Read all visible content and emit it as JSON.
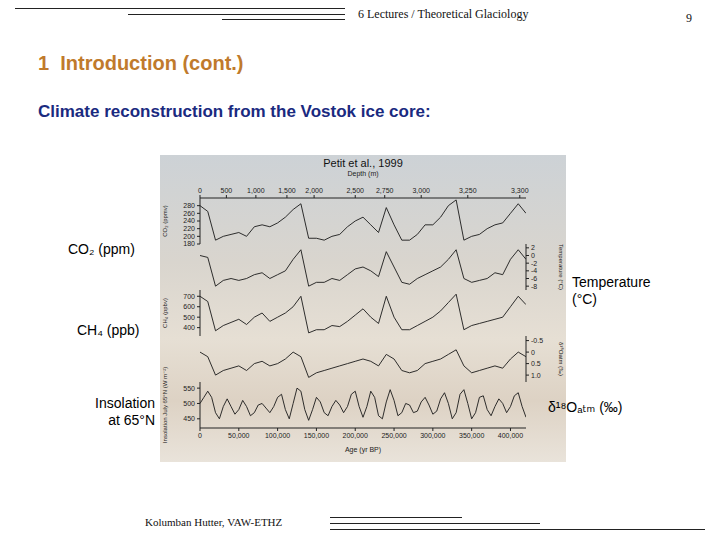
{
  "header": {
    "course": "6 Lectures / Theoretical Glaciology",
    "page": "9"
  },
  "title": "1  Introduction (cont.)",
  "subtitle": "Climate reconstruction from the Vostok ice core:",
  "footer": "Kolumban Hutter, VAW-ETHZ",
  "figure": {
    "credit": "Petit et al., 1999",
    "side_labels": [
      [
        "CO₂ (ppm)"
      ],
      [
        "Temperature",
        "(°C)"
      ],
      [
        "CH₄ (ppb)"
      ],
      [
        "δ¹⁸Oₐₜₘ (‰)"
      ],
      [
        "Insolation",
        "at 65°N"
      ]
    ],
    "top_axis": {
      "label": "Depth (m)",
      "ticks": [
        {
          "value": 0,
          "label": "0"
        },
        {
          "value": 34000,
          "label": "500"
        },
        {
          "value": 72000,
          "label": "1,000"
        },
        {
          "value": 112000,
          "label": "1,500"
        },
        {
          "value": 147000,
          "label": "2,000"
        },
        {
          "value": 200000,
          "label": "2,500"
        },
        {
          "value": 238000,
          "label": "2,750"
        },
        {
          "value": 285000,
          "label": "3,000"
        },
        {
          "value": 345000,
          "label": "3,250"
        },
        {
          "value": 412000,
          "label": "3,300"
        }
      ]
    }
  },
  "chart_data": [
    {
      "type": "line",
      "ylabel": "CO₂ (ppmv)",
      "color": "#1a1a1a",
      "xlim": [
        0,
        420000
      ],
      "x": [
        0,
        10000,
        20000,
        30000,
        40000,
        50000,
        60000,
        70000,
        80000,
        90000,
        100000,
        110000,
        120000,
        130000,
        140000,
        150000,
        160000,
        170000,
        180000,
        190000,
        200000,
        210000,
        220000,
        230000,
        240000,
        250000,
        260000,
        270000,
        280000,
        290000,
        300000,
        310000,
        320000,
        330000,
        340000,
        350000,
        360000,
        370000,
        380000,
        390000,
        400000,
        410000,
        420000
      ],
      "values": [
        280,
        265,
        190,
        200,
        205,
        210,
        200,
        225,
        230,
        225,
        235,
        250,
        270,
        285,
        195,
        195,
        190,
        200,
        205,
        225,
        240,
        250,
        230,
        210,
        275,
        230,
        190,
        190,
        205,
        230,
        230,
        250,
        280,
        295,
        190,
        200,
        205,
        220,
        230,
        235,
        260,
        285,
        260
      ],
      "ylim": [
        180,
        300
      ],
      "yticks": [
        180,
        200,
        220,
        240,
        260,
        280
      ]
    },
    {
      "type": "line",
      "ylabel": "Temperature (°C)",
      "color": "#1a1a1a",
      "xlim": [
        0,
        420000
      ],
      "x": [
        0,
        10000,
        20000,
        30000,
        40000,
        50000,
        60000,
        70000,
        80000,
        90000,
        100000,
        110000,
        120000,
        130000,
        140000,
        150000,
        160000,
        170000,
        180000,
        190000,
        200000,
        210000,
        220000,
        230000,
        240000,
        250000,
        260000,
        270000,
        280000,
        290000,
        300000,
        310000,
        320000,
        330000,
        340000,
        350000,
        360000,
        370000,
        380000,
        390000,
        400000,
        410000,
        420000
      ],
      "values": [
        0,
        -0.5,
        -8,
        -6.5,
        -6,
        -6.5,
        -6,
        -5,
        -4.5,
        -6,
        -5,
        -4,
        -1,
        1.5,
        -8,
        -7,
        -7,
        -6,
        -6.5,
        -5,
        -3.5,
        -3,
        -4,
        -5.5,
        1,
        -3,
        -7,
        -7.5,
        -6,
        -5,
        -4,
        -3,
        -1,
        1.5,
        -6,
        -7,
        -6.5,
        -6,
        -4.5,
        -5,
        -1,
        1.5,
        -1
      ],
      "ylim": [
        -9,
        3
      ],
      "yticks": [
        -8,
        -6,
        -4,
        -2,
        0,
        2
      ]
    },
    {
      "type": "line",
      "ylabel": "CH₄ (ppbv)",
      "color": "#1a1a1a",
      "xlim": [
        0,
        420000
      ],
      "x": [
        0,
        10000,
        20000,
        30000,
        40000,
        50000,
        60000,
        70000,
        80000,
        90000,
        100000,
        110000,
        120000,
        130000,
        140000,
        150000,
        160000,
        170000,
        180000,
        190000,
        200000,
        210000,
        220000,
        230000,
        240000,
        250000,
        260000,
        270000,
        280000,
        290000,
        300000,
        310000,
        320000,
        330000,
        340000,
        350000,
        360000,
        370000,
        380000,
        390000,
        400000,
        410000,
        420000
      ],
      "values": [
        700,
        650,
        370,
        420,
        450,
        480,
        430,
        500,
        540,
        460,
        500,
        540,
        600,
        700,
        350,
        380,
        380,
        420,
        410,
        460,
        520,
        580,
        500,
        440,
        700,
        500,
        380,
        380,
        420,
        460,
        500,
        560,
        640,
        720,
        380,
        420,
        440,
        460,
        480,
        500,
        600,
        700,
        620
      ],
      "ylim": [
        320,
        760
      ],
      "yticks": [
        400,
        500,
        600,
        700
      ]
    },
    {
      "type": "line",
      "ylabel": "δ¹⁸Oatm (‰)",
      "color": "#1a1a1a",
      "xlim": [
        0,
        420000
      ],
      "x": [
        0,
        10000,
        20000,
        30000,
        40000,
        50000,
        60000,
        70000,
        80000,
        90000,
        100000,
        110000,
        120000,
        130000,
        140000,
        150000,
        160000,
        170000,
        180000,
        190000,
        200000,
        210000,
        220000,
        230000,
        240000,
        250000,
        260000,
        270000,
        280000,
        290000,
        300000,
        310000,
        320000,
        330000,
        340000,
        350000,
        360000,
        370000,
        380000,
        390000,
        400000,
        410000,
        420000
      ],
      "values": [
        0,
        0.2,
        1,
        0.8,
        0.7,
        0.6,
        0.8,
        0.5,
        0.4,
        0.6,
        0.5,
        0.3,
        0,
        0.2,
        1.1,
        0.9,
        0.8,
        0.7,
        0.6,
        0.5,
        0.4,
        0.3,
        0.4,
        0.6,
        0.1,
        0.3,
        0.8,
        0.9,
        0.8,
        0.5,
        0.4,
        0.3,
        0.1,
        -0.1,
        0.6,
        0.9,
        0.8,
        0.7,
        0.6,
        0.7,
        0.3,
        0,
        0.2
      ],
      "ylim": [
        1.3,
        -0.7
      ],
      "yticks": [
        -0.5,
        0,
        0.5,
        {
          "value": 1,
          "label": "1.0"
        }
      ]
    },
    {
      "type": "line",
      "ylabel": "Insolation July 65°N (W m⁻²)",
      "color": "#1a1a1a",
      "xlabel": "Age (yr BP)",
      "xlim": [
        0,
        420000
      ],
      "xticks": [
        0,
        {
          "value": 50000,
          "label": "50,000"
        },
        {
          "value": 100000,
          "label": "100,000"
        },
        {
          "value": 150000,
          "label": "150,000"
        },
        {
          "value": 200000,
          "label": "200,000"
        },
        {
          "value": 250000,
          "label": "250,000"
        },
        {
          "value": 300000,
          "label": "300,000"
        },
        {
          "value": 350000,
          "label": "350,000"
        },
        {
          "value": 400000,
          "label": "400,000"
        }
      ],
      "x": [
        0,
        5000,
        10000,
        15000,
        20000,
        25000,
        30000,
        35000,
        40000,
        45000,
        50000,
        55000,
        60000,
        65000,
        70000,
        75000,
        80000,
        85000,
        90000,
        95000,
        100000,
        105000,
        110000,
        115000,
        120000,
        125000,
        130000,
        135000,
        140000,
        145000,
        150000,
        155000,
        160000,
        165000,
        170000,
        175000,
        180000,
        185000,
        190000,
        195000,
        200000,
        205000,
        210000,
        215000,
        220000,
        225000,
        230000,
        235000,
        240000,
        245000,
        250000,
        255000,
        260000,
        265000,
        270000,
        275000,
        280000,
        285000,
        290000,
        295000,
        300000,
        305000,
        310000,
        315000,
        320000,
        325000,
        330000,
        335000,
        340000,
        345000,
        350000,
        355000,
        360000,
        365000,
        370000,
        375000,
        380000,
        385000,
        390000,
        395000,
        400000,
        405000,
        410000,
        415000,
        420000
      ],
      "values": [
        500,
        520,
        540,
        520,
        470,
        450,
        490,
        515,
        490,
        465,
        480,
        510,
        490,
        460,
        470,
        495,
        500,
        485,
        470,
        490,
        520,
        530,
        480,
        450,
        500,
        550,
        540,
        480,
        445,
        480,
        520,
        505,
        470,
        460,
        490,
        510,
        495,
        470,
        490,
        530,
        540,
        490,
        455,
        490,
        540,
        520,
        460,
        450,
        505,
        545,
        510,
        460,
        470,
        500,
        495,
        470,
        475,
        505,
        520,
        495,
        465,
        475,
        515,
        535,
        500,
        450,
        470,
        530,
        545,
        500,
        450,
        470,
        520,
        525,
        480,
        460,
        490,
        515,
        500,
        470,
        490,
        525,
        535,
        490,
        455
      ],
      "ylim": [
        420,
        570
      ],
      "yticks": [
        450,
        500,
        550
      ]
    }
  ]
}
